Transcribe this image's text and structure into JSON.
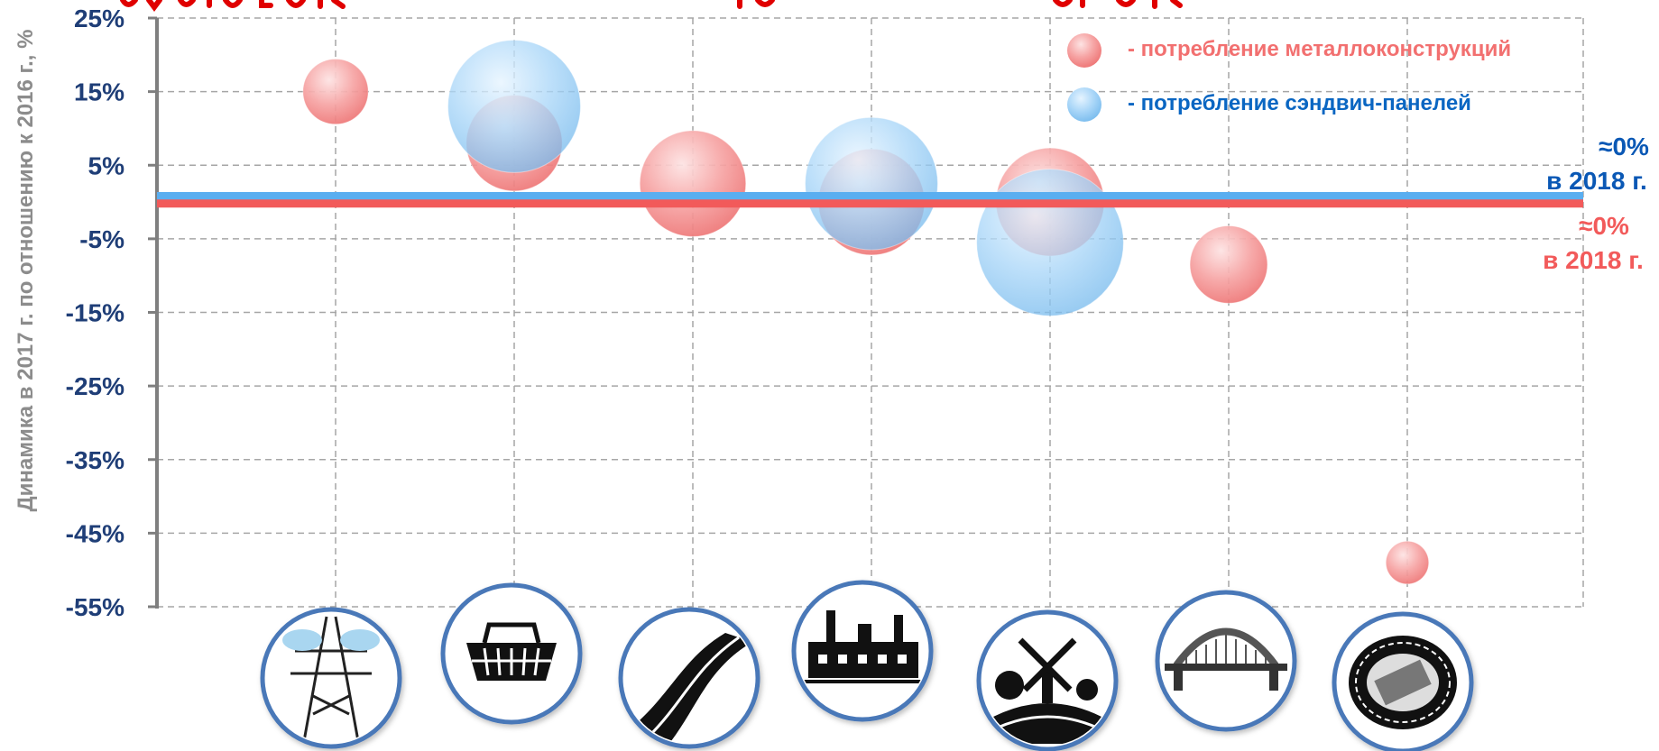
{
  "title_partial": "",
  "chart_data": {
    "type": "bubble",
    "ylabel": "Динамика в 2017 г. по отношению к  2016 г., %",
    "ylim": [
      -55,
      25
    ],
    "yticks": [
      25,
      15,
      5,
      -5,
      -15,
      -25,
      -35,
      -45,
      -55
    ],
    "ytick_labels": [
      "25%",
      "15%",
      "5%",
      "-5%",
      "-15%",
      "-25%",
      "-35%",
      "-45%",
      "-55%"
    ],
    "grid": true,
    "legend_position": "top-right",
    "categories": [
      "energy",
      "retail",
      "roads",
      "industry",
      "agriculture",
      "bridges",
      "stadiums"
    ],
    "category_icons": [
      "power-line-icon",
      "shopping-basket-icon",
      "road-icon",
      "factory-icon",
      "windmill-farm-icon",
      "bridge-icon",
      "stadium-icon"
    ],
    "series": [
      {
        "name": "- потребление металлоконструкций",
        "color": "#f26d6d",
        "points": [
          {
            "category": 0,
            "y": 15,
            "size": 0.32
          },
          {
            "category": 1,
            "y": 8,
            "size": 0.47
          },
          {
            "category": 2,
            "y": 2.5,
            "size": 0.52
          },
          {
            "category": 3,
            "y": 0,
            "size": 0.52
          },
          {
            "category": 4,
            "y": 0,
            "size": 0.53
          },
          {
            "category": 5,
            "y": -8.5,
            "size": 0.38
          },
          {
            "category": 6,
            "y": -49,
            "size": 0.21
          }
        ]
      },
      {
        "name": "- потребление сэндвич-панелей",
        "color": "#6fb7ec",
        "points": [
          {
            "category": 1,
            "y": 13,
            "size": 0.65
          },
          {
            "category": 3,
            "y": 2.5,
            "size": 0.65
          },
          {
            "category": 4,
            "y": -5.5,
            "size": 0.72
          }
        ]
      }
    ],
    "reference_lines": [
      {
        "name": "sandwich-forecast",
        "y": 0.8,
        "color": "#5aaef0",
        "label_line1": "≈0%",
        "label_line2": "в 2018 г.",
        "label_color": "#0a58b5"
      },
      {
        "name": "metal-forecast",
        "y": -0.2,
        "color": "#f25a5a",
        "label_line1": "≈0%",
        "label_line2": "в 2018 г.",
        "label_color": "#f25a5a"
      }
    ]
  }
}
